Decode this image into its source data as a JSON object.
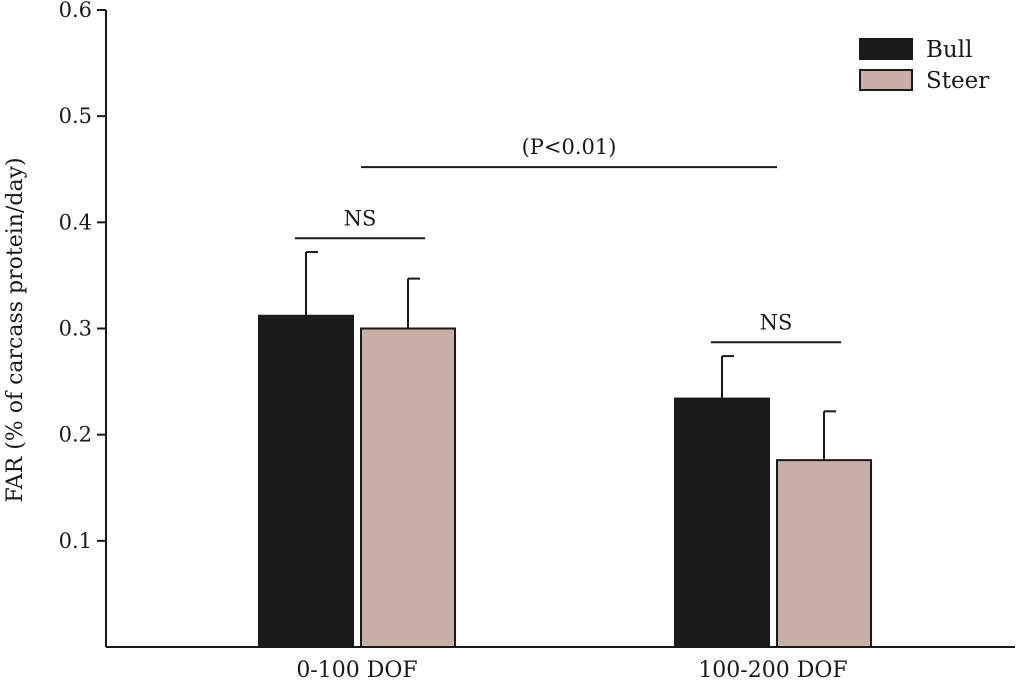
{
  "chart_data": {
    "type": "bar",
    "title": "",
    "xlabel": "",
    "ylabel": "FAR (% of carcass protein/day)",
    "ylim": [
      0,
      0.6
    ],
    "yticks": [
      "0.1",
      "0.2",
      "0.3",
      "0.4",
      "0.5",
      "0.6"
    ],
    "categories": [
      "0-100 DOF",
      "100-200 DOF"
    ],
    "series": [
      {
        "name": "Bull",
        "color": "#1b1c1a",
        "values": [
          0.312,
          0.234
        ],
        "errors": [
          0.06,
          0.04
        ]
      },
      {
        "name": "Steer",
        "color": "#c9ada7",
        "values": [
          0.3,
          0.176
        ],
        "errors": [
          0.047,
          0.046
        ]
      }
    ],
    "legend_position": "top-right",
    "grid": false,
    "annotations": [
      {
        "text": "NS",
        "category": 0,
        "y": 0.385
      },
      {
        "text": "NS",
        "category": 1,
        "y": 0.287
      },
      {
        "text": "(P<0.01)",
        "between_categories": [
          0,
          1
        ],
        "y": 0.452
      }
    ]
  }
}
